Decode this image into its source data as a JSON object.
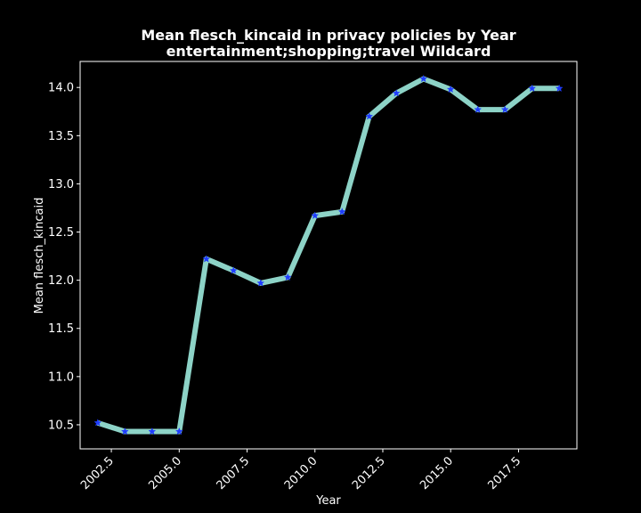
{
  "chart_data": {
    "type": "line",
    "title": "Mean flesch_kincaid in privacy policies by Year",
    "subtitle": "entertainment;shopping;travel Wildcard",
    "xlabel": "Year",
    "ylabel": "Mean flesch_kincaid",
    "xlim": [
      2001.35,
      2019.65
    ],
    "ylim": [
      10.25,
      14.27
    ],
    "x_ticks": [
      2002.5,
      2005.0,
      2007.5,
      2010.0,
      2012.5,
      2015.0,
      2017.5
    ],
    "x_tick_labels": [
      "2002.5",
      "2005.0",
      "2007.5",
      "2010.0",
      "2012.5",
      "2015.0",
      "2017.5"
    ],
    "y_ticks": [
      10.5,
      11.0,
      11.5,
      12.0,
      12.5,
      13.0,
      13.5,
      14.0
    ],
    "y_tick_labels": [
      "10.5",
      "11.0",
      "11.5",
      "12.0",
      "12.5",
      "13.0",
      "13.5",
      "14.0"
    ],
    "grid": false,
    "legend": "none",
    "colors": {
      "background": "#000000",
      "line": "#8dd3c7",
      "marker": "#1f3cff",
      "axes": "#ffffff",
      "text": "#ffffff"
    },
    "series": [
      {
        "x": [
          2002,
          2003,
          2004,
          2005,
          2006,
          2007,
          2008,
          2009,
          2010,
          2011,
          2012,
          2013,
          2014,
          2015,
          2016,
          2017,
          2018,
          2019
        ],
        "values": [
          10.52,
          10.43,
          10.43,
          10.43,
          12.22,
          12.1,
          11.97,
          12.03,
          12.67,
          12.71,
          13.7,
          13.94,
          14.09,
          13.98,
          13.77,
          13.77,
          13.99,
          13.99
        ]
      }
    ]
  }
}
